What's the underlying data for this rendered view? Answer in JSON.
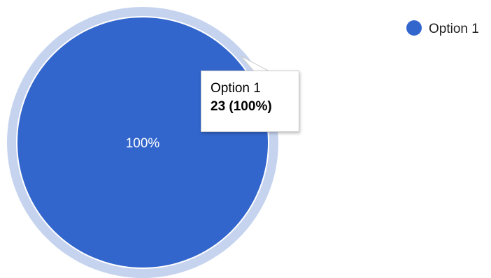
{
  "chart_data": {
    "type": "pie",
    "categories": [
      "Option 1"
    ],
    "values": [
      23
    ],
    "slice_labels": [
      "100%"
    ],
    "colors": [
      "#3366cc"
    ],
    "hover_ring_color": "#c5d3ef",
    "legend": {
      "position": "top-right",
      "entries": [
        "Option 1"
      ]
    },
    "tooltip": {
      "name": "Option 1",
      "value_text": "23 (100%)"
    }
  }
}
